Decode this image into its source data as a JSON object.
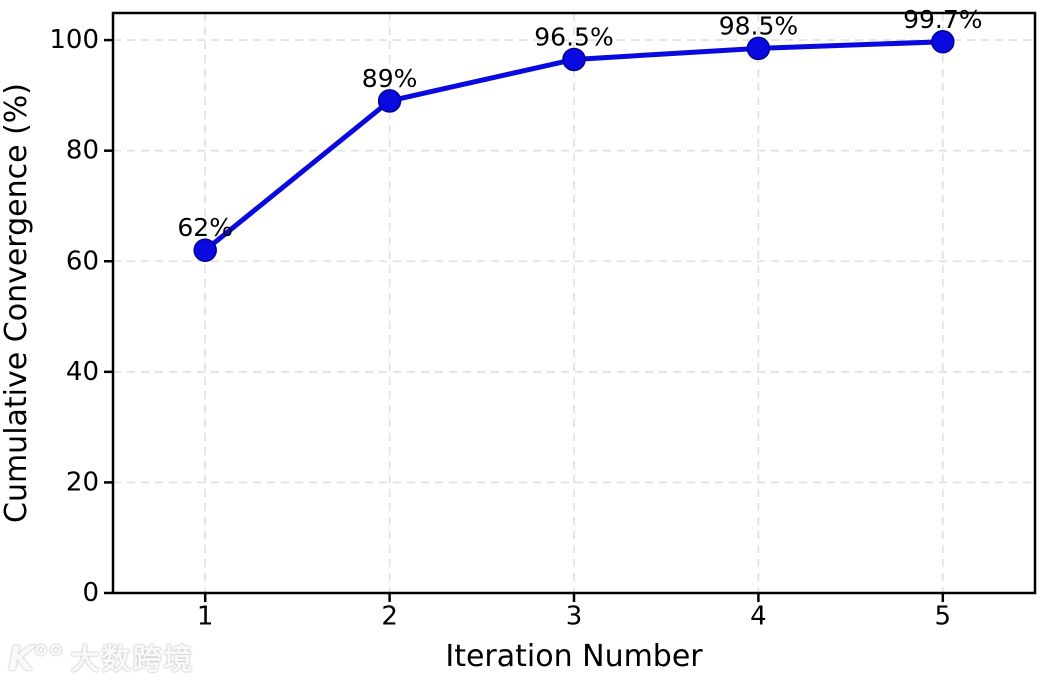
{
  "chart_data": {
    "type": "line",
    "title": "",
    "xlabel": "Iteration Number",
    "ylabel": "Cumulative Convergence (%)",
    "x": [
      1,
      2,
      3,
      4,
      5
    ],
    "series": [
      {
        "name": "Cumulative Convergence",
        "values": [
          62,
          89,
          96.5,
          98.5,
          99.7
        ],
        "point_labels": [
          "62%",
          "89%",
          "96.5%",
          "98.5%",
          "99.7%"
        ]
      }
    ],
    "xticks": [
      1,
      2,
      3,
      4,
      5
    ],
    "xtick_labels": [
      "1",
      "2",
      "3",
      "4",
      "5"
    ],
    "yticks": [
      0,
      20,
      40,
      60,
      80,
      100
    ],
    "ytick_labels": [
      "0",
      "20",
      "40",
      "60",
      "80",
      "100"
    ],
    "xlim": [
      0.5,
      5.5
    ],
    "ylim": [
      0,
      104.9
    ],
    "grid": true,
    "grid_style": "dashed",
    "legend_position": "none",
    "colors": {
      "line": "#0a0ae0",
      "marker_fill": "#0a0ae0",
      "marker_edge": "#000099",
      "grid": "#e0e0e0",
      "axis": "#000000",
      "label_text": "#000000"
    }
  },
  "watermark": {
    "logo_icon": "k100-logo",
    "logo_glyph": "K°°",
    "text": "大数跨境"
  }
}
